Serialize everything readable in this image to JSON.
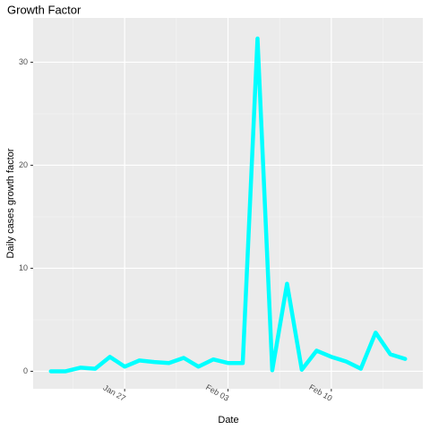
{
  "chart_data": {
    "type": "line",
    "title": "Growth Factor",
    "x_label": "Date",
    "y_label": "Daily cases growth factor",
    "x": [
      "Jan 22",
      "Jan 23",
      "Jan 24",
      "Jan 25",
      "Jan 26",
      "Jan 27",
      "Jan 28",
      "Jan 29",
      "Jan 30",
      "Jan 31",
      "Feb 01",
      "Feb 02",
      "Feb 03",
      "Feb 04",
      "Feb 05",
      "Feb 06",
      "Feb 07",
      "Feb 08",
      "Feb 09",
      "Feb 10",
      "Feb 11",
      "Feb 12",
      "Feb 13",
      "Feb 14",
      "Feb 15"
    ],
    "series": [
      {
        "name": "growth factor",
        "color": "#00ffff",
        "values": [
          0,
          0,
          0.35,
          0.25,
          1.4,
          0.45,
          1.05,
          0.9,
          0.8,
          1.3,
          0.45,
          1.15,
          0.8,
          0.8,
          32.3,
          0.1,
          8.5,
          0.15,
          2.0,
          1.4,
          0.95,
          0.25,
          3.75,
          1.65,
          1.2
        ]
      }
    ],
    "xticks": [
      "Jan 27",
      "Feb 03",
      "Feb 10"
    ],
    "ylim": [
      -1.7,
      34.3
    ],
    "yticks": [
      0,
      10,
      20,
      30
    ],
    "grid": true
  }
}
